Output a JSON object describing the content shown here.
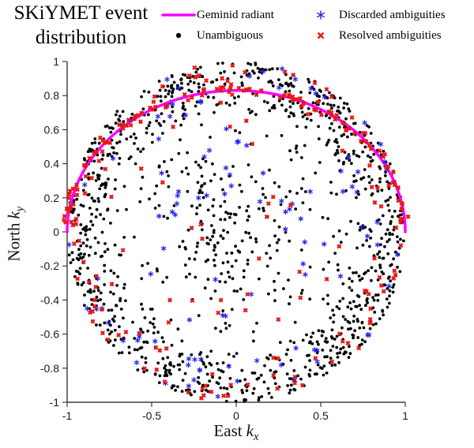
{
  "page": {
    "background": "#ffffff"
  },
  "chart_data": {
    "type": "scatter",
    "title": "SKiYMET event distribution",
    "xlabel": "East k_x",
    "ylabel": "North k_y",
    "xlabel_parts": {
      "prefix": "East",
      "symbol": "k",
      "subscript": "x"
    },
    "ylabel_parts": {
      "prefix": "North",
      "symbol": "k",
      "subscript": "y"
    },
    "xlim": [
      -1,
      1
    ],
    "ylim": [
      -1,
      1
    ],
    "x_ticks": [
      -1,
      -0.5,
      0,
      0.5,
      1
    ],
    "y_ticks": [
      -1,
      -0.8,
      -0.6,
      -0.4,
      -0.2,
      0,
      0.2,
      0.4,
      0.6,
      0.8,
      1
    ],
    "grid": false,
    "axis_color": "#1a1a1a",
    "legend": {
      "position": "top",
      "columns": 2,
      "border": false
    },
    "curve": {
      "name": "Geminid radiant",
      "color": "#ff00ff",
      "shape": "ellipse-arc",
      "a": 1.0,
      "b": 0.83,
      "theta_deg": [
        0,
        180
      ],
      "linewidth": 3.5
    },
    "series": [
      {
        "name": "Unambiguous",
        "marker": "dot",
        "color": "#000000",
        "seed": 11,
        "clusters": [
          {
            "count": 980,
            "rMin": 0.7,
            "rMax": 1.0,
            "angMin": 0,
            "angMax": 360,
            "edgeBias": 1.7
          },
          {
            "count": 290,
            "rMin": 0.05,
            "rMax": 0.78,
            "angMin": 0,
            "angMax": 360,
            "edgeBias": 1.0
          }
        ]
      },
      {
        "name": "Discarded ambiguities",
        "marker": "asterisk",
        "color": "#2020ee",
        "seed": 23,
        "clusters": [
          {
            "count": 55,
            "rMin": 0.76,
            "rMax": 1.0,
            "angMin": 0,
            "angMax": 360,
            "edgeBias": 1.4
          },
          {
            "count": 40,
            "rMin": 0.22,
            "rMax": 0.85,
            "angMin": 0,
            "angMax": 180,
            "edgeBias": 1.0
          },
          {
            "count": 14,
            "rMin": 0.3,
            "rMax": 0.9,
            "angMin": 180,
            "angMax": 360,
            "edgeBias": 1.0
          }
        ]
      },
      {
        "name": "Resolved ambiguities",
        "marker": "cross",
        "color": "#e81717",
        "seed": 37,
        "clusters": [
          {
            "count": 95,
            "type": "arc",
            "jitter": 0.025
          },
          {
            "count": 115,
            "rMin": 0.78,
            "rMax": 1.0,
            "angMin": 0,
            "angMax": 360,
            "edgeBias": 1.5
          },
          {
            "count": 30,
            "rMin": 0.2,
            "rMax": 0.78,
            "angMin": 0,
            "angMax": 360,
            "edgeBias": 1.0
          }
        ]
      }
    ]
  }
}
